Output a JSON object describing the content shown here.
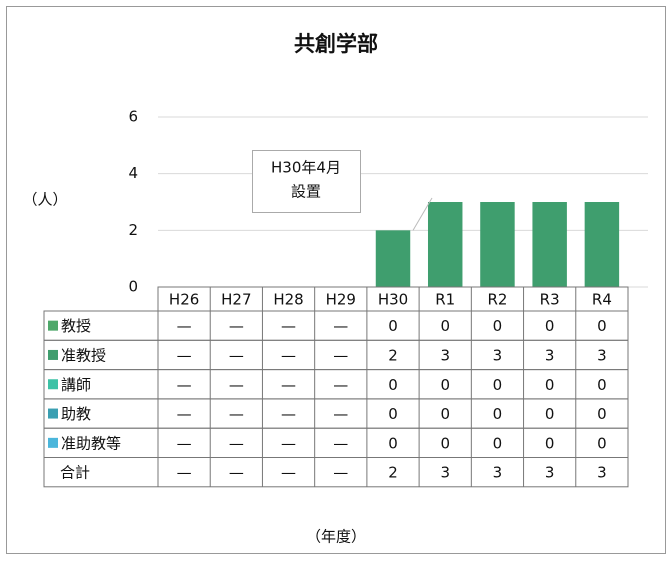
{
  "chart_data": {
    "type": "stacked_bar",
    "title": "共創学部",
    "y_label": "（人）",
    "x_label": "（年度）",
    "categories": [
      "H26",
      "H27",
      "H28",
      "H29",
      "H30",
      "R1",
      "R2",
      "R3",
      "R4"
    ],
    "series": [
      {
        "name": "教授",
        "color": "#4ea86a",
        "values": [
          null,
          null,
          null,
          null,
          0,
          0,
          0,
          0,
          0
        ]
      },
      {
        "name": "准教授",
        "color": "#3f9e6e",
        "values": [
          null,
          null,
          null,
          null,
          2,
          3,
          3,
          3,
          3
        ]
      },
      {
        "name": "講師",
        "color": "#3cc2a6",
        "values": [
          null,
          null,
          null,
          null,
          0,
          0,
          0,
          0,
          0
        ]
      },
      {
        "name": "助教",
        "color": "#3a9fb2",
        "values": [
          null,
          null,
          null,
          null,
          0,
          0,
          0,
          0,
          0
        ]
      },
      {
        "name": "准助教等",
        "color": "#4bb6db",
        "values": [
          null,
          null,
          null,
          null,
          0,
          0,
          0,
          0,
          0
        ]
      }
    ],
    "totals": {
      "name": "合計",
      "values": [
        null,
        null,
        null,
        null,
        2,
        3,
        3,
        3,
        3
      ]
    },
    "na_label": "—",
    "annotation": [
      "H30年4月",
      "設置"
    ],
    "ylim": [
      0,
      6
    ],
    "yticks": [
      0,
      2,
      4,
      6
    ],
    "grid": true
  }
}
